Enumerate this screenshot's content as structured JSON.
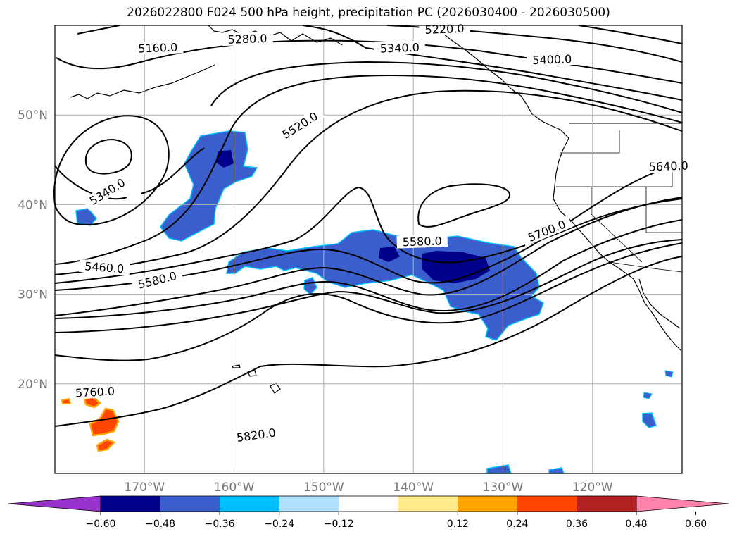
{
  "title": "2026022800 F024 500 hPa height, precipitation PC (2026030400 - 2026030500)",
  "chart_data": {
    "type": "map",
    "projection": "Plate Carrée",
    "extent": {
      "lon_min": -180,
      "lon_max": -110,
      "lat_min": 10,
      "lat_max": 60
    },
    "latitude_ticks": [
      {
        "value": 20,
        "label": "20°N"
      },
      {
        "value": 30,
        "label": "30°N"
      },
      {
        "value": 40,
        "label": "40°N"
      },
      {
        "value": 50,
        "label": "50°N"
      }
    ],
    "longitude_ticks": [
      {
        "value": -170,
        "label": "170°W"
      },
      {
        "value": -160,
        "label": "160°W"
      },
      {
        "value": -150,
        "label": "150°W"
      },
      {
        "value": -140,
        "label": "140°W"
      },
      {
        "value": -130,
        "label": "130°W"
      },
      {
        "value": -120,
        "label": "120°W"
      }
    ],
    "contour_labels": [
      {
        "text": "5160.0",
        "lon": -168.5,
        "lat": 57.2
      },
      {
        "text": "5220.0",
        "lon": -136.5,
        "lat": 59.3
      },
      {
        "text": "5280.0",
        "lon": -158.5,
        "lat": 58.2
      },
      {
        "text": "5340.0",
        "lon": -141.5,
        "lat": 57.2
      },
      {
        "text": "5400.0",
        "lon": -124.5,
        "lat": 55.9
      },
      {
        "text": "5520.0",
        "lon": -152.5,
        "lat": 48.6
      },
      {
        "text": "5340.0",
        "lon": -174.0,
        "lat": 41.2
      },
      {
        "text": "5640.0",
        "lon": -111.5,
        "lat": 44.0
      },
      {
        "text": "5460.0",
        "lon": -174.5,
        "lat": 32.7
      },
      {
        "text": "5580.0",
        "lon": -139.0,
        "lat": 35.6
      },
      {
        "text": "5580.0",
        "lon": -168.5,
        "lat": 31.3
      },
      {
        "text": "5700.0",
        "lon": -125.0,
        "lat": 36.8
      },
      {
        "text": "5760.0",
        "lon": -175.5,
        "lat": 18.8
      },
      {
        "text": "5820.0",
        "lon": -157.5,
        "lat": 14.0
      }
    ],
    "precipitation_pc_units": "PC",
    "colorbar": {
      "extend": "both",
      "ticks": [
        "−0.60",
        "−0.48",
        "−0.36",
        "−0.24",
        "−0.12",
        "0.12",
        "0.24",
        "0.36",
        "0.48",
        "0.60"
      ],
      "colors": [
        "#9932cc",
        "#00008b",
        "#3a5fcd",
        "#00bfff",
        "#b0e2ff",
        "#ffffff",
        "#ffeb8c",
        "#ffa500",
        "#ff4500",
        "#b22222",
        "#ff82ab"
      ]
    }
  }
}
